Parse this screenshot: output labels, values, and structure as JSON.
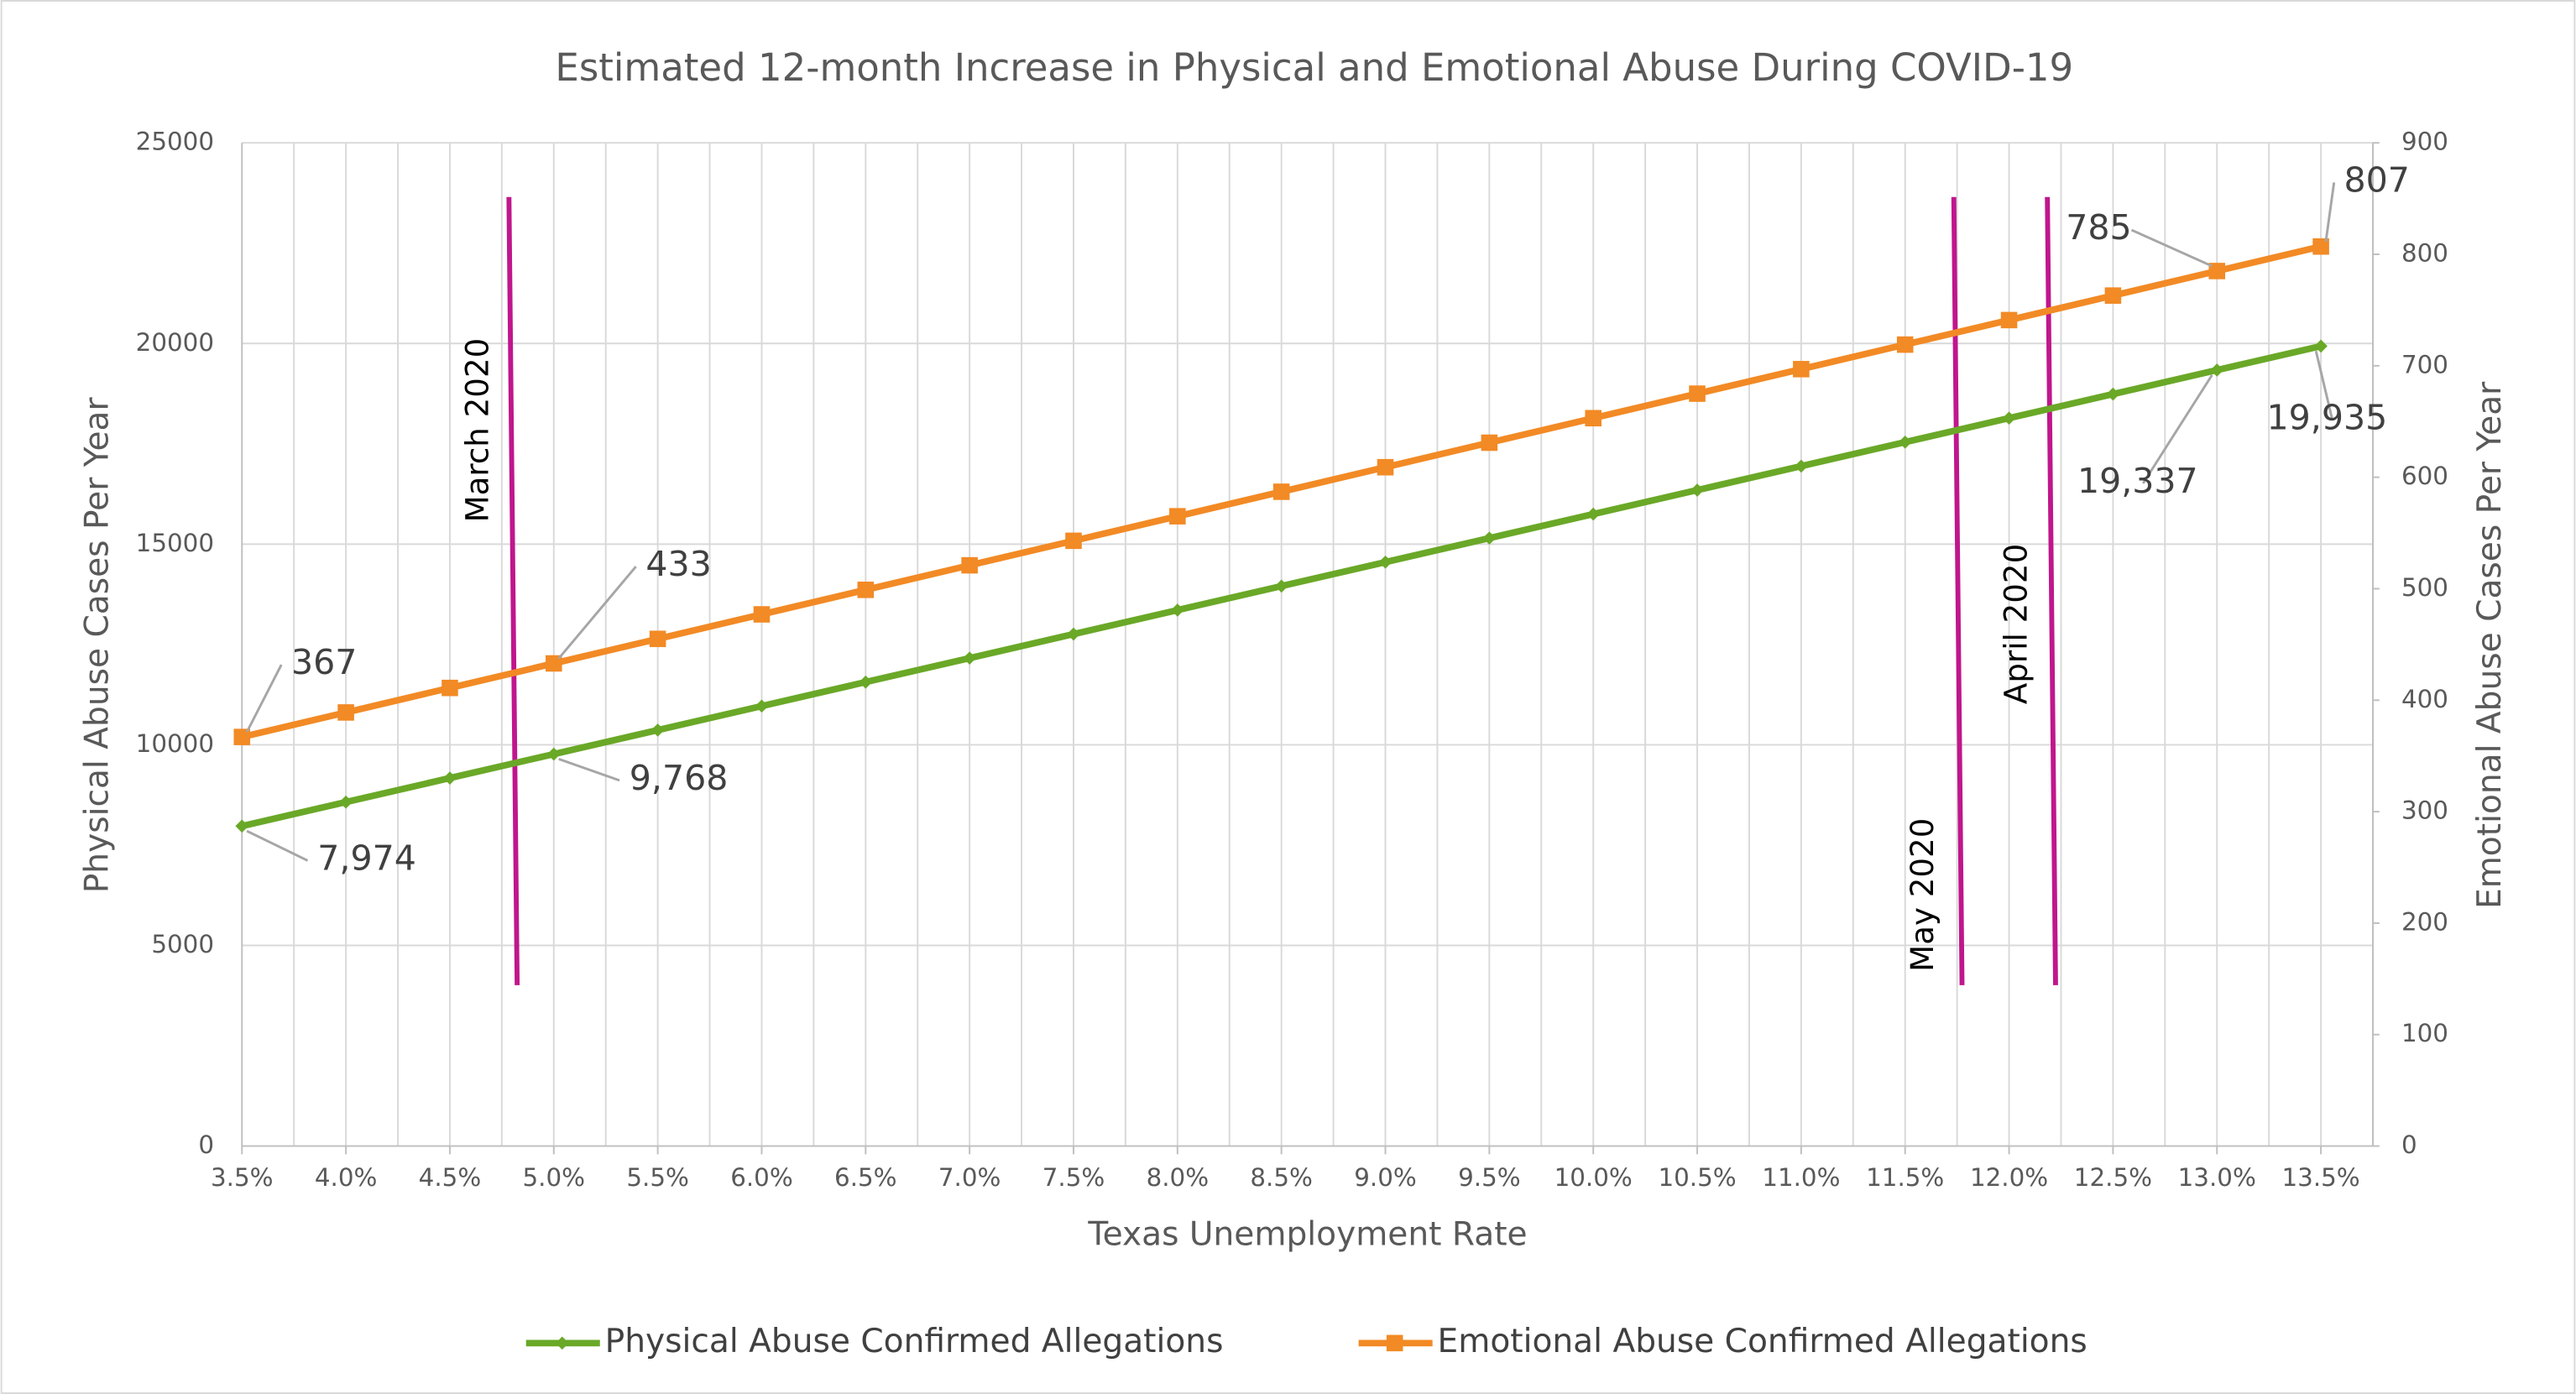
{
  "chart_data": {
    "type": "line",
    "title": "Estimated 12-month Increase in Physical and Emotional Abuse During COVID-19",
    "x_label": "Texas Unemployment Rate",
    "y_label": "Physical Abuse Cases Per Year",
    "y2_label": "Emotional Abuse Cases Per Year",
    "categories": [
      "3.5%",
      "4.0%",
      "4.5%",
      "5.0%",
      "5.5%",
      "6.0%",
      "6.5%",
      "7.0%",
      "7.5%",
      "8.0%",
      "8.5%",
      "9.0%",
      "9.5%",
      "10.0%",
      "10.5%",
      "11.0%",
      "11.5%",
      "12.0%",
      "12.5%",
      "13.0%",
      "13.5%"
    ],
    "series": [
      {
        "name": "Physical Abuse Confirmed Allegations",
        "color": "#6aa827",
        "marker": "diamond",
        "values": [
          7974,
          8572,
          9170,
          9768,
          10366,
          10964,
          11562,
          12160,
          12758,
          13356,
          13954,
          14552,
          15150,
          15748,
          16346,
          16944,
          17542,
          18140,
          18739,
          19337,
          19935
        ],
        "value_labels": [
          "7,974",
          null,
          null,
          "9,768",
          null,
          null,
          null,
          null,
          null,
          null,
          null,
          null,
          null,
          null,
          null,
          null,
          null,
          null,
          null,
          "19,337",
          "19,935"
        ]
      },
      {
        "name": "Emotional Abuse Confirmed Allegations",
        "color": "#f28a25",
        "marker": "square",
        "axis": "y2",
        "values": [
          367,
          389,
          411,
          433,
          455,
          477,
          499,
          521,
          543,
          565,
          587,
          609,
          631,
          653,
          675,
          697,
          719,
          741,
          763,
          785,
          807
        ],
        "value_labels": [
          "367",
          null,
          null,
          "433",
          null,
          null,
          null,
          null,
          null,
          null,
          null,
          null,
          null,
          null,
          null,
          null,
          null,
          null,
          null,
          "785",
          "807"
        ]
      }
    ],
    "ylim": [
      0,
      25000
    ],
    "yticks": [
      0,
      5000,
      10000,
      15000,
      20000,
      25000
    ],
    "y2lim": [
      0,
      900
    ],
    "y2ticks": [
      0,
      100,
      200,
      300,
      400,
      500,
      600,
      700,
      800,
      900
    ],
    "grid": true,
    "legend": "bottom",
    "annotations": [
      {
        "text": "March 2020",
        "x": 4.8,
        "color": "#c0168c"
      },
      {
        "text": "May 2020",
        "x": 11.75,
        "color": "#c0168c"
      },
      {
        "text": "April 2020",
        "x": 12.2,
        "color": "#c0168c"
      }
    ]
  }
}
